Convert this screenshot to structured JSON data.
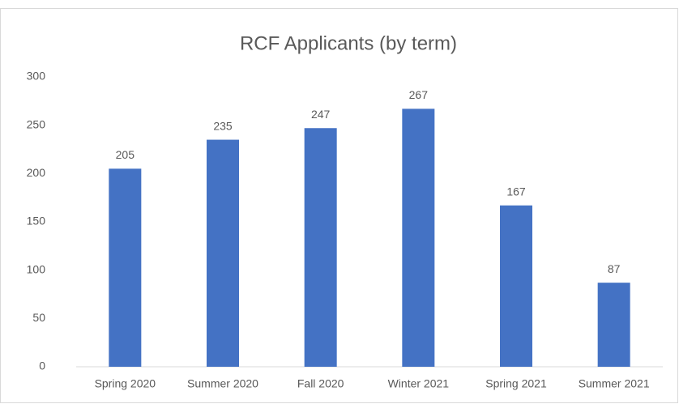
{
  "chart_data": {
    "type": "bar",
    "title": "RCF Applicants (by term)",
    "categories": [
      "Spring 2020",
      "Summer 2020",
      "Fall 2020",
      "Winter 2021",
      "Spring 2021",
      "Summer 2021"
    ],
    "values": [
      205,
      235,
      247,
      267,
      167,
      87
    ],
    "color": "#4472c4",
    "ylim": [
      0,
      300
    ],
    "yticks": [
      0,
      50,
      100,
      150,
      200,
      250,
      300
    ],
    "grid": false
  }
}
